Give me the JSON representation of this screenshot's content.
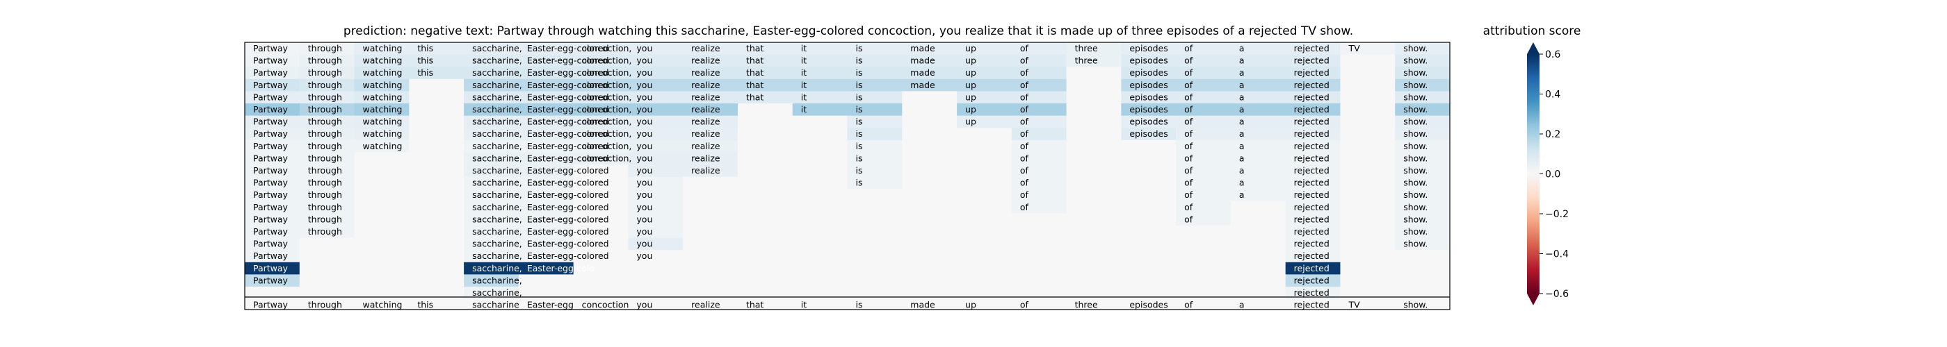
{
  "chart_data": [
    {
      "type": "heatmap",
      "title": "prediction:  negative      text:  Partway through watching this saccharine, Easter-egg-colored concoction, you realize that it is made up of three episodes of a rejected TV show.",
      "tokens": [
        "Partway",
        "through",
        "watching",
        "this",
        "saccharine,",
        "Easter-egg-colored",
        "concoction,",
        "you",
        "realize",
        "that",
        "it",
        "is",
        "made",
        "up",
        "of",
        "three",
        "episodes",
        "of",
        "a",
        "rejected",
        "TV",
        "show."
      ],
      "row_words": [
        [
          "Partway",
          "through",
          "watching",
          "this",
          "saccharine,",
          "Easter-egg-colored",
          "concoction,",
          "you",
          "realize",
          "that",
          "it",
          "is",
          "made",
          "up",
          "of",
          "three",
          "episodes",
          "of",
          "a",
          "rejected",
          "TV",
          "show."
        ],
        [
          "Partway",
          "through",
          "watching",
          "this",
          "saccharine,",
          "Easter-egg-colored",
          "concoction,",
          "you",
          "realize",
          "that",
          "it",
          "is",
          "made",
          "up",
          "of",
          "three",
          "episodes",
          "of",
          "a",
          "rejected",
          "",
          "show."
        ],
        [
          "Partway",
          "through",
          "watching",
          "this",
          "saccharine,",
          "Easter-egg-colored",
          "concoction,",
          "you",
          "realize",
          "that",
          "it",
          "is",
          "made",
          "up",
          "of",
          "",
          "episodes",
          "of",
          "a",
          "rejected",
          "",
          "show."
        ],
        [
          "Partway",
          "through",
          "watching",
          "",
          "saccharine,",
          "Easter-egg-colored",
          "concoction,",
          "you",
          "realize",
          "that",
          "it",
          "is",
          "made",
          "up",
          "of",
          "",
          "episodes",
          "of",
          "a",
          "rejected",
          "",
          "show."
        ],
        [
          "Partway",
          "through",
          "watching",
          "",
          "saccharine,",
          "Easter-egg-colored",
          "concoction,",
          "you",
          "realize",
          "that",
          "it",
          "is",
          "",
          "up",
          "of",
          "",
          "episodes",
          "of",
          "a",
          "rejected",
          "",
          "show."
        ],
        [
          "Partway",
          "through",
          "watching",
          "",
          "saccharine,",
          "Easter-egg-colored",
          "concoction,",
          "you",
          "realize",
          "",
          "it",
          "is",
          "",
          "up",
          "of",
          "",
          "episodes",
          "of",
          "a",
          "rejected",
          "",
          "show."
        ],
        [
          "Partway",
          "through",
          "watching",
          "",
          "saccharine,",
          "Easter-egg-colored",
          "concoction,",
          "you",
          "realize",
          "",
          "",
          "is",
          "",
          "up",
          "of",
          "",
          "episodes",
          "of",
          "a",
          "rejected",
          "",
          "show."
        ],
        [
          "Partway",
          "through",
          "watching",
          "",
          "saccharine,",
          "Easter-egg-colored",
          "concoction,",
          "you",
          "realize",
          "",
          "",
          "is",
          "",
          "",
          "of",
          "",
          "episodes",
          "of",
          "a",
          "rejected",
          "",
          "show."
        ],
        [
          "Partway",
          "through",
          "watching",
          "",
          "saccharine,",
          "Easter-egg-colored",
          "concoction,",
          "you",
          "realize",
          "",
          "",
          "is",
          "",
          "",
          "of",
          "",
          "",
          "of",
          "a",
          "rejected",
          "",
          "show."
        ],
        [
          "Partway",
          "through",
          "",
          "",
          "saccharine,",
          "Easter-egg-colored",
          "concoction,",
          "you",
          "realize",
          "",
          "",
          "is",
          "",
          "",
          "of",
          "",
          "",
          "of",
          "a",
          "rejected",
          "",
          "show."
        ],
        [
          "Partway",
          "through",
          "",
          "",
          "saccharine,",
          "Easter-egg-colored",
          "",
          "you",
          "realize",
          "",
          "",
          "is",
          "",
          "",
          "of",
          "",
          "",
          "of",
          "a",
          "rejected",
          "",
          "show."
        ],
        [
          "Partway",
          "through",
          "",
          "",
          "saccharine,",
          "Easter-egg-colored",
          "",
          "you",
          "",
          "",
          "",
          "is",
          "",
          "",
          "of",
          "",
          "",
          "of",
          "a",
          "rejected",
          "",
          "show."
        ],
        [
          "Partway",
          "through",
          "",
          "",
          "saccharine,",
          "Easter-egg-colored",
          "",
          "you",
          "",
          "",
          "",
          "",
          "",
          "",
          "of",
          "",
          "",
          "of",
          "a",
          "rejected",
          "",
          "show."
        ],
        [
          "Partway",
          "through",
          "",
          "",
          "saccharine,",
          "Easter-egg-colored",
          "",
          "you",
          "",
          "",
          "",
          "",
          "",
          "",
          "of",
          "",
          "",
          "of",
          "",
          "rejected",
          "",
          "show."
        ],
        [
          "Partway",
          "through",
          "",
          "",
          "saccharine,",
          "Easter-egg-colored",
          "",
          "you",
          "",
          "",
          "",
          "",
          "",
          "",
          "",
          "",
          "",
          "of",
          "",
          "rejected",
          "",
          "show."
        ],
        [
          "Partway",
          "through",
          "",
          "",
          "saccharine,",
          "Easter-egg-colored",
          "",
          "you",
          "",
          "",
          "",
          "",
          "",
          "",
          "",
          "",
          "",
          "",
          "",
          "rejected",
          "",
          "show."
        ],
        [
          "Partway",
          "",
          "",
          "",
          "saccharine,",
          "Easter-egg-colored",
          "",
          "you",
          "",
          "",
          "",
          "",
          "",
          "",
          "",
          "",
          "",
          "",
          "",
          "rejected",
          "",
          "show."
        ],
        [
          "Partway",
          "",
          "",
          "",
          "saccharine,",
          "Easter-egg-colored",
          "",
          "you",
          "",
          "",
          "",
          "",
          "",
          "",
          "",
          "",
          "",
          "",
          "",
          "rejected",
          "",
          ""
        ],
        [
          "Partway",
          "",
          "",
          "",
          "saccharine,",
          "Easter-egg-colo",
          "",
          "",
          "",
          "",
          "",
          "",
          "",
          "",
          "",
          "",
          "",
          "",
          "",
          "rejected",
          "",
          ""
        ],
        [
          "Partway",
          "",
          "",
          "",
          "saccharine,",
          "",
          "",
          "",
          "",
          "",
          "",
          "",
          "",
          "",
          "",
          "",
          "",
          "",
          "",
          "rejected",
          "",
          ""
        ],
        [
          "",
          "",
          "",
          "",
          "saccharine,",
          "",
          "",
          "",
          "",
          "",
          "",
          "",
          "",
          "",
          "",
          "",
          "",
          "",
          "",
          "rejected",
          "",
          ""
        ]
      ],
      "values": [
        [
          0.02,
          0.03,
          0.06,
          0.06,
          0.06,
          0.06,
          0.06,
          0.06,
          0.06,
          0.06,
          0.06,
          0.06,
          0.06,
          0.06,
          0.06,
          0.04,
          0.06,
          0.06,
          0.06,
          0.06,
          0.02,
          0.06
        ],
        [
          0.03,
          0.04,
          0.08,
          0.08,
          0.08,
          0.08,
          0.08,
          0.08,
          0.08,
          0.08,
          0.08,
          0.08,
          0.08,
          0.08,
          0.08,
          0.04,
          0.08,
          0.08,
          0.08,
          0.08,
          0.0,
          0.08
        ],
        [
          0.04,
          0.05,
          0.1,
          0.1,
          0.1,
          0.1,
          0.1,
          0.1,
          0.1,
          0.1,
          0.1,
          0.1,
          0.1,
          0.1,
          0.1,
          0.0,
          0.1,
          0.1,
          0.1,
          0.1,
          0.0,
          0.1
        ],
        [
          0.12,
          0.1,
          0.14,
          0.0,
          0.16,
          0.16,
          0.16,
          0.16,
          0.16,
          0.16,
          0.16,
          0.16,
          0.16,
          0.16,
          0.16,
          0.0,
          0.16,
          0.16,
          0.16,
          0.16,
          0.0,
          0.16
        ],
        [
          0.06,
          0.06,
          0.08,
          0.0,
          0.08,
          0.08,
          0.08,
          0.08,
          0.08,
          0.08,
          0.08,
          0.08,
          0.0,
          0.08,
          0.08,
          0.0,
          0.08,
          0.08,
          0.08,
          0.08,
          0.0,
          0.08
        ],
        [
          0.22,
          0.18,
          0.2,
          0.0,
          0.2,
          0.2,
          0.2,
          0.2,
          0.2,
          0.0,
          0.2,
          0.2,
          0.0,
          0.2,
          0.2,
          0.0,
          0.2,
          0.2,
          0.2,
          0.2,
          0.0,
          0.2
        ],
        [
          0.05,
          0.05,
          0.06,
          0.0,
          0.06,
          0.06,
          0.06,
          0.06,
          0.06,
          0.0,
          0.0,
          0.06,
          0.0,
          0.06,
          0.06,
          0.0,
          0.06,
          0.06,
          0.06,
          0.06,
          0.0,
          0.06
        ],
        [
          0.04,
          0.04,
          0.05,
          0.0,
          0.05,
          0.05,
          0.05,
          0.05,
          0.05,
          0.0,
          0.0,
          0.08,
          0.0,
          0.0,
          0.08,
          0.0,
          0.08,
          0.05,
          0.05,
          0.05,
          0.0,
          0.05
        ],
        [
          0.03,
          0.03,
          0.03,
          0.0,
          0.03,
          0.03,
          0.03,
          0.04,
          0.04,
          0.0,
          0.0,
          0.03,
          0.0,
          0.0,
          0.03,
          0.0,
          0.0,
          0.03,
          0.03,
          0.03,
          0.0,
          0.03
        ],
        [
          0.03,
          0.03,
          0.0,
          0.0,
          0.04,
          0.04,
          0.04,
          0.05,
          0.05,
          0.0,
          0.0,
          0.03,
          0.0,
          0.0,
          0.03,
          0.0,
          0.0,
          0.03,
          0.03,
          0.03,
          0.0,
          0.03
        ],
        [
          0.03,
          0.03,
          0.0,
          0.0,
          0.04,
          0.04,
          0.0,
          0.05,
          0.05,
          0.0,
          0.0,
          0.03,
          0.0,
          0.0,
          0.03,
          0.0,
          0.0,
          0.03,
          0.03,
          0.03,
          0.0,
          0.03
        ],
        [
          0.03,
          0.03,
          0.0,
          0.0,
          0.03,
          0.03,
          0.0,
          0.03,
          0.0,
          0.0,
          0.0,
          0.03,
          0.0,
          0.0,
          0.03,
          0.0,
          0.0,
          0.03,
          0.03,
          0.03,
          0.0,
          0.03
        ],
        [
          0.03,
          0.03,
          0.0,
          0.0,
          0.03,
          0.03,
          0.0,
          0.03,
          0.0,
          0.0,
          0.0,
          0.0,
          0.0,
          0.0,
          0.03,
          0.0,
          0.0,
          0.03,
          0.03,
          0.03,
          0.0,
          0.03
        ],
        [
          0.03,
          0.03,
          0.0,
          0.0,
          0.03,
          0.03,
          0.0,
          0.03,
          0.0,
          0.0,
          0.0,
          0.0,
          0.0,
          0.0,
          0.03,
          0.0,
          0.0,
          0.03,
          0.0,
          0.03,
          0.0,
          0.03
        ],
        [
          0.03,
          0.03,
          0.0,
          0.0,
          0.03,
          0.03,
          0.0,
          0.03,
          0.0,
          0.0,
          0.0,
          0.0,
          0.0,
          0.0,
          0.0,
          0.0,
          0.0,
          0.03,
          0.0,
          0.03,
          0.0,
          0.03
        ],
        [
          0.03,
          0.03,
          0.0,
          0.0,
          0.03,
          0.03,
          0.0,
          0.03,
          0.0,
          0.0,
          0.0,
          0.0,
          0.0,
          0.0,
          0.0,
          0.0,
          0.0,
          0.0,
          0.0,
          0.03,
          0.0,
          0.03
        ],
        [
          0.03,
          0.0,
          0.0,
          0.0,
          0.03,
          0.03,
          0.0,
          0.06,
          0.0,
          0.0,
          0.0,
          0.0,
          0.0,
          0.0,
          0.0,
          0.0,
          0.0,
          0.0,
          0.0,
          0.03,
          0.0,
          0.03
        ],
        [
          0.03,
          0.0,
          0.0,
          0.0,
          0.03,
          0.03,
          0.0,
          0.0,
          0.0,
          0.0,
          0.0,
          0.0,
          0.0,
          0.0,
          0.0,
          0.0,
          0.0,
          0.0,
          0.0,
          0.03,
          0.0,
          0.0
        ],
        [
          0.58,
          0.0,
          0.0,
          0.0,
          0.58,
          0.58,
          0.0,
          0.0,
          0.0,
          0.0,
          0.0,
          0.0,
          0.0,
          0.0,
          0.0,
          0.0,
          0.0,
          0.0,
          0.0,
          0.58,
          0.0,
          0.0
        ],
        [
          0.15,
          0.0,
          0.0,
          0.0,
          0.15,
          0.0,
          0.0,
          0.0,
          0.0,
          0.0,
          0.0,
          0.0,
          0.0,
          0.0,
          0.0,
          0.0,
          0.0,
          0.0,
          0.0,
          0.15,
          0.0,
          0.0
        ],
        [
          0.0,
          0.0,
          0.0,
          0.0,
          0.03,
          0.0,
          0.0,
          0.0,
          0.0,
          0.0,
          0.0,
          0.0,
          0.0,
          0.0,
          0.0,
          0.0,
          0.0,
          0.0,
          0.0,
          0.03,
          0.0,
          0.0
        ]
      ],
      "bottom_row_label": [
        "Partway",
        "through",
        "watching",
        "this",
        "saccharine,",
        "Easter-egg-colored",
        "concoction,",
        "you",
        "realize",
        "that",
        "it",
        "is",
        "made",
        "up",
        "of",
        "three",
        "episodes",
        "of",
        "a",
        "rejected",
        "TV",
        "show."
      ],
      "colorbar": {
        "label": "attribution score",
        "range": [
          -0.6,
          0.6
        ],
        "ticks": [
          0.6,
          0.4,
          0.2,
          0.0,
          -0.2,
          -0.4,
          -0.6
        ],
        "tick_labels": [
          "0.6",
          "0.4",
          "0.2",
          "0.0",
          "−0.2",
          "−0.4",
          "−0.6"
        ],
        "colormap": "RdBu"
      }
    }
  ]
}
